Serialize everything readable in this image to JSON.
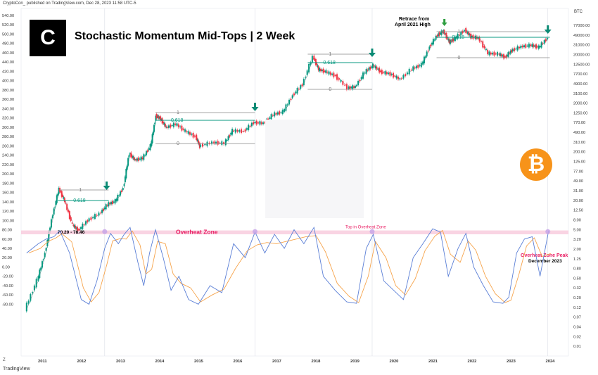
{
  "header": {
    "published": "CryptoCon_ published on TradingView.com, Dec 28, 2023 11:58 UTC-5"
  },
  "title": "Stochastic Momentum Mid-Tops | 2 Week",
  "logo": {
    "icon": "cryptocon-logo-icon",
    "glyph": "C"
  },
  "badge": {
    "icon": "bitcoin-icon",
    "glyph": "₿",
    "color": "#f7931a"
  },
  "footer": {
    "brand": "TradingView"
  },
  "chart_data": {
    "type": "line",
    "currency": "BTC",
    "left_axis_ticks": [
      540,
      520,
      500,
      480,
      460,
      440,
      420,
      400,
      380,
      360,
      340,
      320,
      300,
      280,
      260,
      240,
      220,
      200,
      180,
      160,
      140,
      120,
      100,
      80,
      60,
      40,
      20,
      0,
      -20,
      -40,
      -60,
      -80
    ],
    "left_axis_labels": [
      "540.00",
      "520.00",
      "500.00",
      "480.00",
      "460.00",
      "440.00",
      "420.00",
      "400.00",
      "380.00",
      "360.00",
      "340.00",
      "320.00",
      "300.00",
      "280.00",
      "260.00",
      "240.00",
      "220.00",
      "200.00",
      "180.00",
      "160.00",
      "140.00",
      "120.00",
      "100.00",
      "80.00",
      "60.00",
      "40.00",
      "20.00",
      "0.00",
      "-20.00",
      "-40.00",
      "-60.00",
      "-80.00"
    ],
    "right_axis_labels": [
      "77000.00",
      "49000.00",
      "31000.00",
      "20000.00",
      "12500.00",
      "7700.00",
      "4900.00",
      "3100.00",
      "2000.00",
      "1250.00",
      "770.00",
      "490.00",
      "310.00",
      "200.00",
      "125.00",
      "77.00",
      "49.00",
      "31.00",
      "20.00",
      "12.50",
      "8.00",
      "5.00",
      "3.20",
      "2.00",
      "1.25",
      "0.80",
      "0.50",
      "0.32",
      "0.20",
      "0.12",
      "0.07",
      "0.04",
      "0.02",
      "0.01"
    ],
    "x_labels": [
      "2011",
      "2012",
      "2013",
      "2014",
      "2015",
      "2016",
      "2017",
      "2018",
      "2019",
      "2020",
      "2021",
      "2022",
      "2023",
      "2024"
    ],
    "price_series": [
      {
        "t": 2010.6,
        "v": 0.06
      },
      {
        "t": 2010.9,
        "v": 0.25
      },
      {
        "t": 2011.1,
        "v": 1.0
      },
      {
        "t": 2011.3,
        "v": 7
      },
      {
        "t": 2011.45,
        "v": 24
      },
      {
        "t": 2011.6,
        "v": 13
      },
      {
        "t": 2011.8,
        "v": 4
      },
      {
        "t": 2011.95,
        "v": 3
      },
      {
        "t": 2012.2,
        "v": 5
      },
      {
        "t": 2012.5,
        "v": 7
      },
      {
        "t": 2012.7,
        "v": 11
      },
      {
        "t": 2012.9,
        "v": 13
      },
      {
        "t": 2013.1,
        "v": 25
      },
      {
        "t": 2013.25,
        "v": 140
      },
      {
        "t": 2013.4,
        "v": 100
      },
      {
        "t": 2013.6,
        "v": 110
      },
      {
        "t": 2013.8,
        "v": 200
      },
      {
        "t": 2013.93,
        "v": 900
      },
      {
        "t": 2014.05,
        "v": 780
      },
      {
        "t": 2014.2,
        "v": 500
      },
      {
        "t": 2014.45,
        "v": 600
      },
      {
        "t": 2014.7,
        "v": 420
      },
      {
        "t": 2014.95,
        "v": 320
      },
      {
        "t": 2015.05,
        "v": 200
      },
      {
        "t": 2015.4,
        "v": 240
      },
      {
        "t": 2015.7,
        "v": 230
      },
      {
        "t": 2015.9,
        "v": 430
      },
      {
        "t": 2016.2,
        "v": 420
      },
      {
        "t": 2016.45,
        "v": 650
      },
      {
        "t": 2016.7,
        "v": 620
      },
      {
        "t": 2016.95,
        "v": 960
      },
      {
        "t": 2017.2,
        "v": 1100
      },
      {
        "t": 2017.45,
        "v": 2500
      },
      {
        "t": 2017.7,
        "v": 4300
      },
      {
        "t": 2017.96,
        "v": 17000
      },
      {
        "t": 2018.1,
        "v": 9000
      },
      {
        "t": 2018.3,
        "v": 8000
      },
      {
        "t": 2018.55,
        "v": 6500
      },
      {
        "t": 2018.85,
        "v": 3600
      },
      {
        "t": 2019.05,
        "v": 3800
      },
      {
        "t": 2019.3,
        "v": 8000
      },
      {
        "t": 2019.5,
        "v": 11000
      },
      {
        "t": 2019.7,
        "v": 8000
      },
      {
        "t": 2019.95,
        "v": 7200
      },
      {
        "t": 2020.2,
        "v": 5500
      },
      {
        "t": 2020.5,
        "v": 9200
      },
      {
        "t": 2020.75,
        "v": 11500
      },
      {
        "t": 2020.95,
        "v": 28000
      },
      {
        "t": 2021.15,
        "v": 50000
      },
      {
        "t": 2021.3,
        "v": 60000
      },
      {
        "t": 2021.45,
        "v": 35000
      },
      {
        "t": 2021.6,
        "v": 42000
      },
      {
        "t": 2021.85,
        "v": 64000
      },
      {
        "t": 2022.0,
        "v": 46000
      },
      {
        "t": 2022.2,
        "v": 43000
      },
      {
        "t": 2022.45,
        "v": 20000
      },
      {
        "t": 2022.7,
        "v": 19500
      },
      {
        "t": 2022.88,
        "v": 16500
      },
      {
        "t": 2023.05,
        "v": 23000
      },
      {
        "t": 2023.3,
        "v": 28000
      },
      {
        "t": 2023.55,
        "v": 30000
      },
      {
        "t": 2023.75,
        "v": 27000
      },
      {
        "t": 2023.97,
        "v": 43000
      }
    ],
    "stoch_k": [
      {
        "t": 2010.6,
        "v": 30
      },
      {
        "t": 2010.9,
        "v": 50
      },
      {
        "t": 2011.1,
        "v": 60
      },
      {
        "t": 2011.3,
        "v": 65
      },
      {
        "t": 2011.45,
        "v": 78
      },
      {
        "t": 2011.7,
        "v": 30
      },
      {
        "t": 2011.85,
        "v": -20
      },
      {
        "t": 2012.0,
        "v": -70
      },
      {
        "t": 2012.2,
        "v": -80
      },
      {
        "t": 2012.4,
        "v": -30
      },
      {
        "t": 2012.6,
        "v": 40
      },
      {
        "t": 2012.75,
        "v": 72
      },
      {
        "t": 2012.95,
        "v": 50
      },
      {
        "t": 2013.1,
        "v": 70
      },
      {
        "t": 2013.25,
        "v": 85
      },
      {
        "t": 2013.45,
        "v": 10
      },
      {
        "t": 2013.6,
        "v": -40
      },
      {
        "t": 2013.75,
        "v": 30
      },
      {
        "t": 2013.9,
        "v": 80
      },
      {
        "t": 2014.1,
        "v": 20
      },
      {
        "t": 2014.3,
        "v": -50
      },
      {
        "t": 2014.5,
        "v": -20
      },
      {
        "t": 2014.75,
        "v": -70
      },
      {
        "t": 2015.0,
        "v": -80
      },
      {
        "t": 2015.3,
        "v": -40
      },
      {
        "t": 2015.6,
        "v": -55
      },
      {
        "t": 2015.9,
        "v": 50
      },
      {
        "t": 2016.2,
        "v": 20
      },
      {
        "t": 2016.45,
        "v": 75
      },
      {
        "t": 2016.7,
        "v": 30
      },
      {
        "t": 2016.95,
        "v": 70
      },
      {
        "t": 2017.2,
        "v": 40
      },
      {
        "t": 2017.45,
        "v": 80
      },
      {
        "t": 2017.7,
        "v": 50
      },
      {
        "t": 2017.96,
        "v": 85
      },
      {
        "t": 2018.2,
        "v": -20
      },
      {
        "t": 2018.5,
        "v": -50
      },
      {
        "t": 2018.8,
        "v": -75
      },
      {
        "t": 2019.05,
        "v": -78
      },
      {
        "t": 2019.3,
        "v": 40
      },
      {
        "t": 2019.48,
        "v": 70
      },
      {
        "t": 2019.75,
        "v": -30
      },
      {
        "t": 2020.0,
        "v": -50
      },
      {
        "t": 2020.25,
        "v": -70
      },
      {
        "t": 2020.5,
        "v": 20
      },
      {
        "t": 2020.75,
        "v": 50
      },
      {
        "t": 2021.0,
        "v": 82
      },
      {
        "t": 2021.2,
        "v": 75
      },
      {
        "t": 2021.4,
        "v": -20
      },
      {
        "t": 2021.65,
        "v": 40
      },
      {
        "t": 2021.85,
        "v": 72
      },
      {
        "t": 2022.05,
        "v": 0
      },
      {
        "t": 2022.3,
        "v": -40
      },
      {
        "t": 2022.55,
        "v": -75
      },
      {
        "t": 2022.8,
        "v": -78
      },
      {
        "t": 2022.95,
        "v": -65
      },
      {
        "t": 2023.15,
        "v": 30
      },
      {
        "t": 2023.35,
        "v": 60
      },
      {
        "t": 2023.55,
        "v": 65
      },
      {
        "t": 2023.75,
        "v": -20
      },
      {
        "t": 2023.97,
        "v": 78
      }
    ],
    "overheat_zone": {
      "label": "Overheat Zone",
      "range_label": "70.20 - 78.46",
      "low": 70.2,
      "high": 78.46
    },
    "fib_levels": [
      "1",
      "0.618",
      "0"
    ],
    "annotations": {
      "retrace": "Retrace from",
      "retrace2": "April 2021 High",
      "top_zone": "Top in Overheat Zone",
      "peak": "Overheat Zone Peak",
      "peak_date": "December 2023"
    },
    "colors": {
      "up": "#089981",
      "down": "#f23645",
      "fib": "#089981",
      "zone": "#f8c9dc",
      "zone_text": "#e91e63",
      "stoch_k": "#5b7fd6",
      "stoch_d": "#f6a44c",
      "arrow": "#0a8a74",
      "arrow_retrace": "#2e9e40"
    }
  }
}
